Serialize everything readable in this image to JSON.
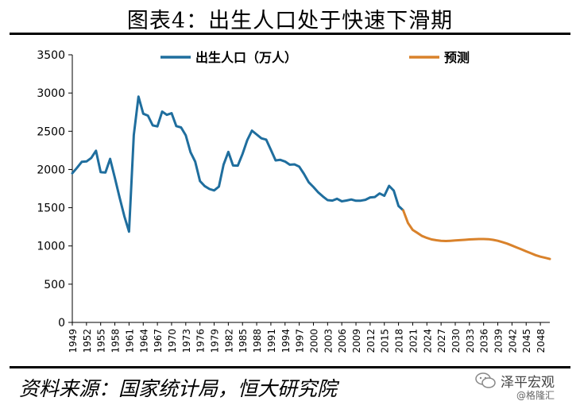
{
  "title": "图表4：出生人口处于快速下滑期",
  "source": "资料来源：国家统计局，恒大研究院",
  "watermark": {
    "name": "泽平宏观",
    "user": "@格隆汇",
    "icon": "wechat-icon"
  },
  "colors": {
    "actual": "#1f6e9e",
    "forecast": "#d9822b"
  },
  "chart_data": {
    "type": "line",
    "ylim": [
      0,
      3500
    ],
    "yticks": [
      0,
      500,
      1000,
      1500,
      2000,
      2500,
      3000,
      3500
    ],
    "xlim": [
      1949,
      2050
    ],
    "xticks": [
      1949,
      1952,
      1955,
      1958,
      1961,
      1964,
      1967,
      1970,
      1973,
      1976,
      1979,
      1982,
      1985,
      1988,
      1991,
      1994,
      1997,
      2000,
      2003,
      2006,
      2009,
      2012,
      2015,
      2018,
      2021,
      2024,
      2027,
      2030,
      2033,
      2036,
      2039,
      2042,
      2045,
      2048
    ],
    "legend_position": "top",
    "series": [
      {
        "name": "出生人口（万人）",
        "color": "#1f6e9e",
        "x": [
          1949,
          1950,
          1951,
          1952,
          1953,
          1954,
          1955,
          1956,
          1957,
          1958,
          1959,
          1960,
          1961,
          1962,
          1963,
          1964,
          1965,
          1966,
          1967,
          1968,
          1969,
          1970,
          1971,
          1972,
          1973,
          1974,
          1975,
          1976,
          1977,
          1978,
          1979,
          1980,
          1981,
          1982,
          1983,
          1984,
          1985,
          1986,
          1987,
          1988,
          1989,
          1990,
          1991,
          1992,
          1993,
          1994,
          1995,
          1996,
          1997,
          1998,
          1999,
          2000,
          2001,
          2002,
          2003,
          2004,
          2005,
          2006,
          2007,
          2008,
          2009,
          2010,
          2011,
          2012,
          2013,
          2014,
          2015,
          2016,
          2017,
          2018,
          2019
        ],
        "values": [
          1950,
          2023,
          2100,
          2105,
          2151,
          2245,
          1965,
          1961,
          2138,
          1889,
          1635,
          1389,
          1187,
          2451,
          2954,
          2729,
          2704,
          2577,
          2563,
          2757,
          2715,
          2736,
          2567,
          2550,
          2447,
          2226,
          2102,
          1849,
          1783,
          1745,
          1726,
          1776,
          2064,
          2230,
          2052,
          2050,
          2202,
          2384,
          2508,
          2457,
          2407,
          2391,
          2258,
          2119,
          2126,
          2104,
          2063,
          2067,
          2038,
          1942,
          1834,
          1771,
          1702,
          1647,
          1599,
          1593,
          1617,
          1584,
          1594,
          1608,
          1591,
          1592,
          1604,
          1635,
          1640,
          1687,
          1655,
          1786,
          1723,
          1523,
          1465
        ]
      },
      {
        "name": "预测",
        "color": "#d9822b",
        "x": [
          2019,
          2020,
          2021,
          2022,
          2023,
          2024,
          2025,
          2026,
          2027,
          2028,
          2029,
          2030,
          2031,
          2032,
          2033,
          2034,
          2035,
          2036,
          2037,
          2038,
          2039,
          2040,
          2041,
          2042,
          2043,
          2044,
          2045,
          2046,
          2047,
          2048,
          2049,
          2050
        ],
        "values": [
          1465,
          1300,
          1210,
          1170,
          1130,
          1105,
          1085,
          1075,
          1068,
          1065,
          1068,
          1072,
          1076,
          1080,
          1085,
          1088,
          1090,
          1090,
          1088,
          1080,
          1068,
          1050,
          1030,
          1005,
          980,
          955,
          930,
          905,
          880,
          860,
          845,
          830
        ]
      }
    ]
  }
}
